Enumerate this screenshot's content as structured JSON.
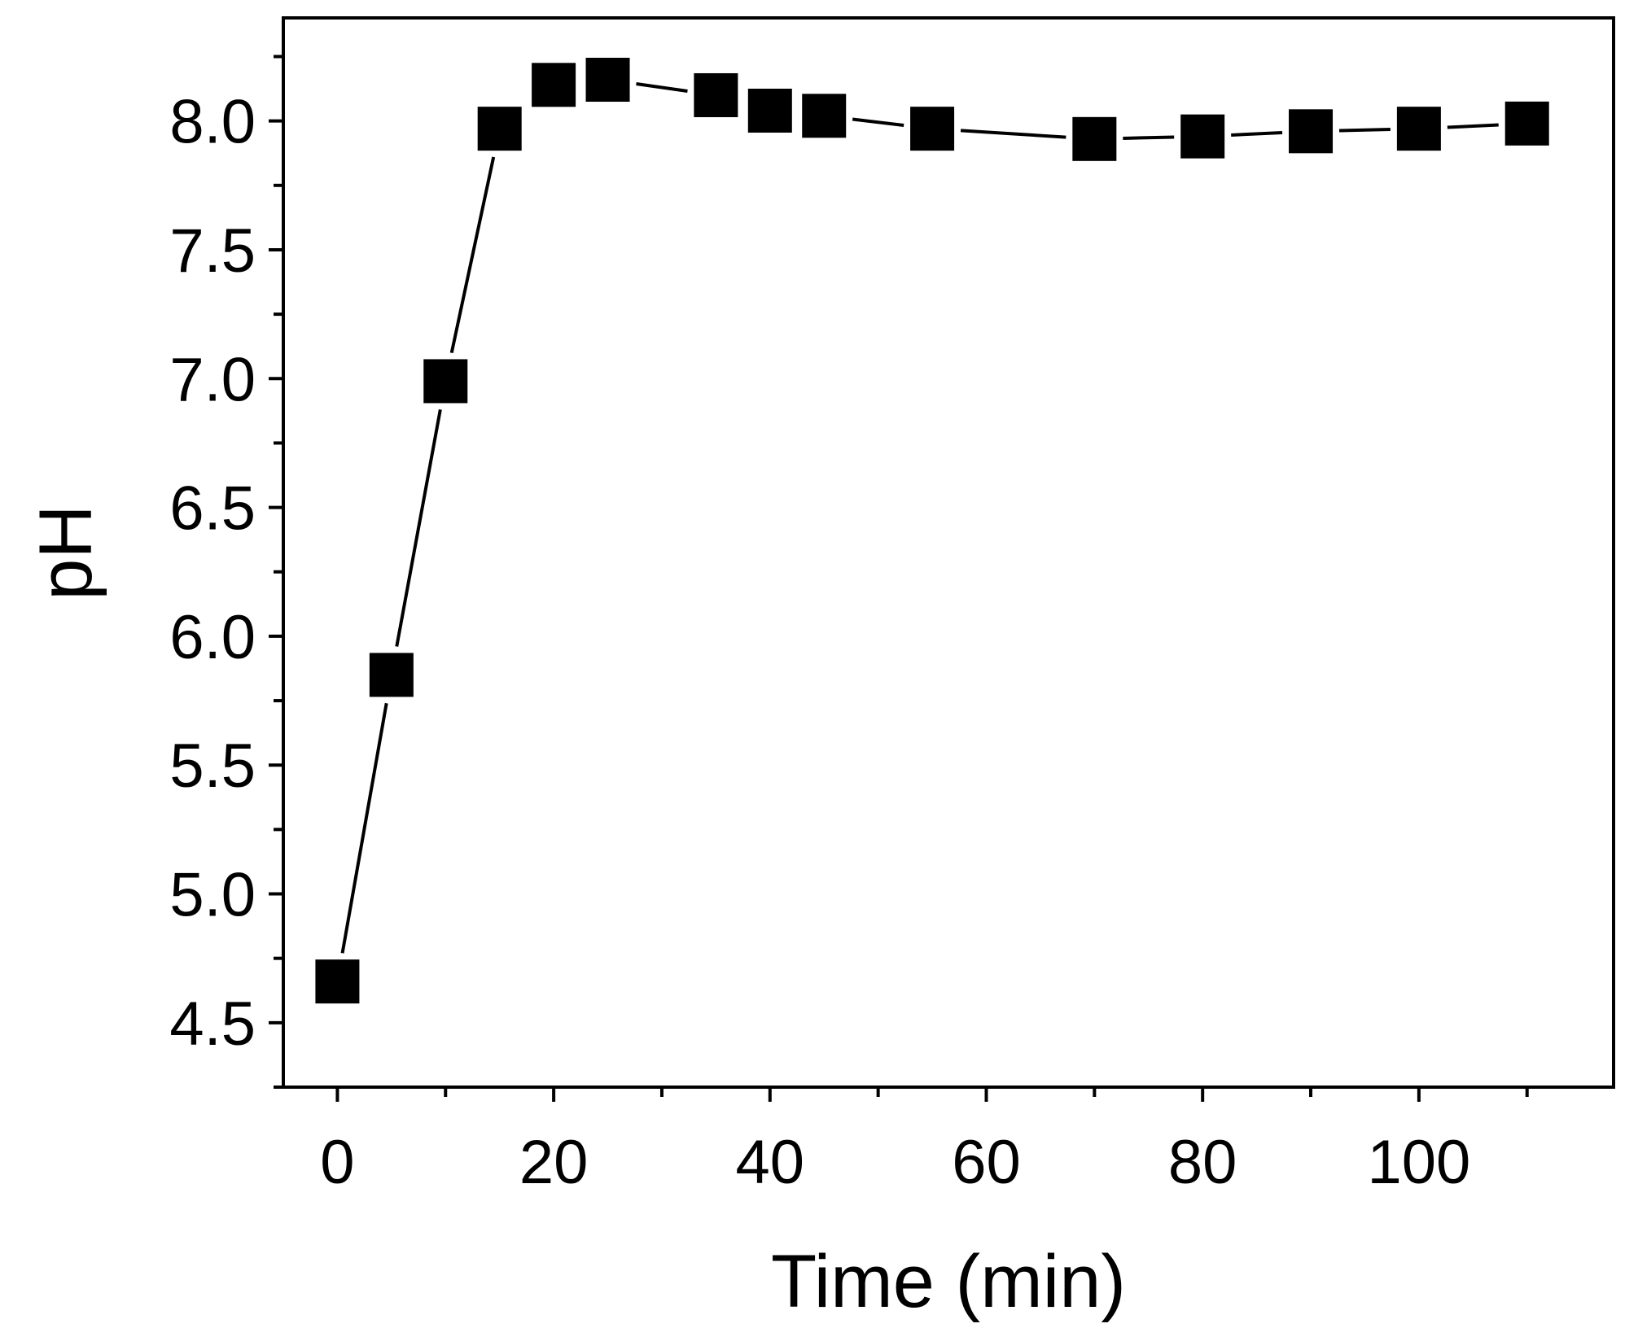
{
  "chart_data": {
    "type": "line",
    "title": "",
    "xlabel": "Time (min)",
    "ylabel": "pH",
    "xlim": [
      -5,
      118
    ],
    "ylim": [
      4.25,
      8.4
    ],
    "x_ticks": [
      0,
      20,
      40,
      60,
      80,
      100
    ],
    "x_minor_ticks": [
      10,
      30,
      50,
      70,
      90,
      110
    ],
    "x_tick_labels": [
      "0",
      "20",
      "40",
      "60",
      "80",
      "100"
    ],
    "y_ticks": [
      4.5,
      5.0,
      5.5,
      6.0,
      6.5,
      7.0,
      7.5,
      8.0
    ],
    "y_minor_ticks": [
      4.25,
      4.75,
      5.25,
      5.75,
      6.25,
      6.75,
      7.25,
      7.75,
      8.25
    ],
    "y_tick_labels": [
      "4.5",
      "5.0",
      "5.5",
      "6.0",
      "6.5",
      "7.0",
      "7.5",
      "8.0"
    ],
    "grid": false,
    "legend": "none",
    "colors": {
      "series": "#000000",
      "axis": "#000000",
      "background": "#ffffff"
    },
    "series": [
      {
        "marker": "square",
        "x": [
          0,
          5,
          10,
          15,
          20,
          25,
          35,
          40,
          45,
          55,
          70,
          80,
          90,
          100,
          110
        ],
        "y": [
          4.66,
          5.85,
          6.99,
          7.97,
          8.14,
          8.16,
          8.1,
          8.04,
          8.02,
          7.97,
          7.93,
          7.94,
          7.96,
          7.97,
          7.99
        ]
      }
    ]
  }
}
